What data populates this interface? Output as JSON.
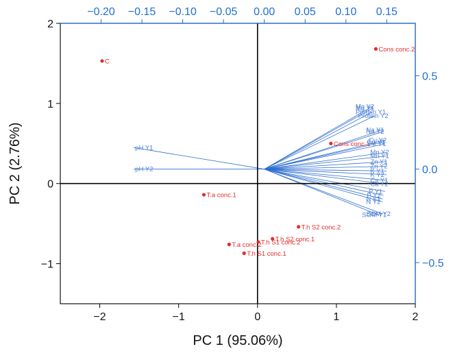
{
  "colors": {
    "score": "#e32b2b",
    "loading": "#2f6fd0",
    "secondary_axis": "#1f6fd1",
    "axis": "#111111"
  },
  "chart_data": {
    "type": "scatter",
    "subtype": "biplot",
    "title": "",
    "xlabel": "PC 1 (95.06%)",
    "ylabel": "PC 2 (2.76%)",
    "xlim": [
      -2.5,
      2.0
    ],
    "ylim": [
      -1.5,
      2.0
    ],
    "x_ticks": [
      "−2",
      "−1",
      "0",
      "1",
      "2"
    ],
    "y_ticks": [
      "−1",
      "0",
      "1",
      "2"
    ],
    "secondary_x": {
      "lim": [
        -0.25,
        0.185
      ],
      "ticks": [
        "−0.20",
        "−0.15",
        "−0.10",
        "−0.05",
        "0.00",
        "0.05",
        "0.10",
        "0.15"
      ]
    },
    "secondary_y": {
      "lim": [
        -0.72,
        0.78
      ],
      "ticks": [
        "−0.5",
        "0.0",
        "0.5"
      ]
    },
    "scores": {
      "name": "Scores",
      "points": [
        {
          "label": "C",
          "x": -1.97,
          "y": 1.53
        },
        {
          "label": "Cons conc.2",
          "x": 1.5,
          "y": 1.68
        },
        {
          "label": "Cons conc.1",
          "x": 0.93,
          "y": 0.5
        },
        {
          "label": "T.a conc.1",
          "x": -0.68,
          "y": -0.14
        },
        {
          "label": "T.h S2 conc.2",
          "x": 0.52,
          "y": -0.54
        },
        {
          "label": "T.h S2 conc.1",
          "x": 0.19,
          "y": -0.69
        },
        {
          "label": "T.h S1 conc.2",
          "x": 0.01,
          "y": -0.73
        },
        {
          "label": "T.a conc.2",
          "x": -0.36,
          "y": -0.76
        },
        {
          "label": "T.h S1 conc.1",
          "x": -0.17,
          "y": -0.87
        }
      ]
    },
    "loadings": {
      "name": "Loadings",
      "vectors": [
        {
          "label": "pH Y1",
          "x": -0.16,
          "y": 0.115
        },
        {
          "label": "pH Y2",
          "x": -0.16,
          "y": 0.0
        },
        {
          "label": "Mg Y2",
          "x": 0.132,
          "y": 0.335
        },
        {
          "label": "Mg Y1",
          "x": 0.132,
          "y": 0.325
        },
        {
          "label": "Protein Y1",
          "x": 0.132,
          "y": 0.305
        },
        {
          "label": "Protein Y2",
          "x": 0.135,
          "y": 0.285
        },
        {
          "label": "Na Y1",
          "x": 0.145,
          "y": 0.21
        },
        {
          "label": "Na Y2",
          "x": 0.145,
          "y": 0.2
        },
        {
          "label": "Cu Y2",
          "x": 0.148,
          "y": 0.155
        },
        {
          "label": "Cu Y1",
          "x": 0.146,
          "y": 0.145
        },
        {
          "label": "Fe Y1",
          "x": 0.148,
          "y": 0.135
        },
        {
          "label": "Mn Y2",
          "x": 0.15,
          "y": 0.09
        },
        {
          "label": "Mn Y1",
          "x": 0.15,
          "y": 0.07
        },
        {
          "label": "Zn Y1",
          "x": 0.15,
          "y": 0.04
        },
        {
          "label": "Zn Y2",
          "x": 0.15,
          "y": 0.015
        },
        {
          "label": "K Y1",
          "x": 0.15,
          "y": -0.01
        },
        {
          "label": "K Y2",
          "x": 0.15,
          "y": -0.03
        },
        {
          "label": "Ca Y1",
          "x": 0.15,
          "y": -0.06
        },
        {
          "label": "Ca Y2",
          "x": 0.15,
          "y": -0.08
        },
        {
          "label": "P Y1",
          "x": 0.148,
          "y": -0.12
        },
        {
          "label": "P Y2",
          "x": 0.146,
          "y": -0.14
        },
        {
          "label": "N Y1",
          "x": 0.145,
          "y": -0.16
        },
        {
          "label": "N Y2",
          "x": 0.145,
          "y": -0.175
        },
        {
          "label": "SOM Y1",
          "x": 0.14,
          "y": -0.245
        },
        {
          "label": "SOM Y2",
          "x": 0.145,
          "y": -0.24
        }
      ]
    }
  }
}
